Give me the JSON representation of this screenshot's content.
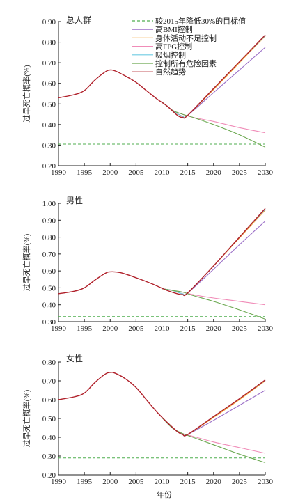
{
  "xlabel": "年份",
  "ylabel": "过早死亡概率(%)",
  "legend": [
    {
      "label": "较2015年降低30%的目标值",
      "color": "#4fae4f",
      "dashed": true
    },
    {
      "label": "高BMI控制",
      "color": "#9b6fc7",
      "dashed": false
    },
    {
      "label": "身体活动不足控制",
      "color": "#f2a33a",
      "dashed": false
    },
    {
      "label": "高FPG控制",
      "color": "#f08cb8",
      "dashed": false
    },
    {
      "label": "吸烟控制",
      "color": "#6fcbe3",
      "dashed": false
    },
    {
      "label": "控制所有危险因素",
      "color": "#6aa84f",
      "dashed": false
    },
    {
      "label": "自然趋势",
      "color": "#b0202a",
      "dashed": false
    }
  ],
  "chart_data": [
    {
      "type": "line",
      "title": "总人群",
      "xlim": [
        1990,
        2030
      ],
      "ylim": [
        0.2,
        0.9
      ],
      "xticks": [
        "1990",
        "1995",
        "2000",
        "2005",
        "2010",
        "2015",
        "2020",
        "2025",
        "2030"
      ],
      "yticks": [
        "0.20",
        "0.30",
        "0.40",
        "0.50",
        "0.60",
        "0.70",
        "0.80",
        "0.90"
      ],
      "target": 0.305,
      "series": [
        {
          "name": "自然趋势",
          "x": [
            1990,
            1993,
            1995,
            1997,
            1999,
            2000,
            2001,
            2003,
            2005,
            2007,
            2009,
            2011,
            2013,
            2014,
            2015,
            2020,
            2025,
            2030
          ],
          "y": [
            0.53,
            0.545,
            0.565,
            0.615,
            0.655,
            0.665,
            0.66,
            0.635,
            0.605,
            0.565,
            0.525,
            0.49,
            0.445,
            0.435,
            0.445,
            0.575,
            0.705,
            0.835
          ]
        },
        {
          "name": "高BMI控制",
          "x": [
            2010,
            2012,
            2014,
            2015,
            2020,
            2025,
            2030
          ],
          "y": [
            0.51,
            0.47,
            0.44,
            0.445,
            0.555,
            0.665,
            0.775
          ]
        },
        {
          "name": "身体活动不足控制",
          "x": [
            2010,
            2012,
            2014,
            2015,
            2020,
            2025,
            2030
          ],
          "y": [
            0.51,
            0.47,
            0.44,
            0.445,
            0.57,
            0.7,
            0.83
          ]
        },
        {
          "name": "高FPG控制",
          "x": [
            2010,
            2012,
            2014,
            2016,
            2020,
            2025,
            2030
          ],
          "y": [
            0.51,
            0.47,
            0.45,
            0.435,
            0.415,
            0.385,
            0.36
          ]
        },
        {
          "name": "吸烟控制",
          "x": [
            2010,
            2012,
            2014,
            2015,
            2020,
            2025,
            2030
          ],
          "y": [
            0.51,
            0.47,
            0.44,
            0.445,
            0.575,
            0.705,
            0.832
          ]
        },
        {
          "name": "控制所有危险因素",
          "x": [
            2010,
            2012,
            2014,
            2016,
            2020,
            2025,
            2030
          ],
          "y": [
            0.51,
            0.47,
            0.45,
            0.435,
            0.4,
            0.35,
            0.29
          ]
        }
      ]
    },
    {
      "type": "line",
      "title": "男性",
      "xlim": [
        1990,
        2030
      ],
      "ylim": [
        0.3,
        1.0
      ],
      "xticks": [
        "1990",
        "1995",
        "2000",
        "2005",
        "2010",
        "2015",
        "2020",
        "2025",
        "2030"
      ],
      "yticks": [
        "0.30",
        "0.40",
        "0.50",
        "0.60",
        "0.70",
        "0.80",
        "0.90",
        "1.00"
      ],
      "target": 0.33,
      "series": [
        {
          "name": "自然趋势",
          "x": [
            1990,
            1993,
            1995,
            1997,
            1999,
            2000,
            2002,
            2005,
            2008,
            2011,
            2013,
            2014,
            2015,
            2020,
            2025,
            2030
          ],
          "y": [
            0.465,
            0.48,
            0.5,
            0.545,
            0.585,
            0.595,
            0.59,
            0.56,
            0.525,
            0.485,
            0.465,
            0.46,
            0.47,
            0.63,
            0.8,
            0.97
          ]
        },
        {
          "name": "高BMI控制",
          "x": [
            2010,
            2012,
            2014,
            2015,
            2020,
            2025,
            2030
          ],
          "y": [
            0.495,
            0.485,
            0.465,
            0.47,
            0.61,
            0.755,
            0.895
          ]
        },
        {
          "name": "身体活动不足控制",
          "x": [
            2010,
            2012,
            2014,
            2015,
            2020,
            2025,
            2030
          ],
          "y": [
            0.495,
            0.485,
            0.465,
            0.47,
            0.63,
            0.795,
            0.96
          ]
        },
        {
          "name": "高FPG控制",
          "x": [
            2010,
            2012,
            2014,
            2016,
            2020,
            2025,
            2030
          ],
          "y": [
            0.495,
            0.485,
            0.475,
            0.46,
            0.44,
            0.42,
            0.4
          ]
        },
        {
          "name": "吸烟控制",
          "x": [
            2010,
            2012,
            2014,
            2015,
            2020,
            2025,
            2030
          ],
          "y": [
            0.495,
            0.485,
            0.465,
            0.47,
            0.63,
            0.8,
            0.965
          ]
        },
        {
          "name": "控制所有危险因素",
          "x": [
            2010,
            2012,
            2014,
            2016,
            2020,
            2025,
            2030
          ],
          "y": [
            0.495,
            0.485,
            0.475,
            0.455,
            0.42,
            0.37,
            0.315
          ]
        }
      ]
    },
    {
      "type": "line",
      "title": "女性",
      "xlim": [
        1990,
        2030
      ],
      "ylim": [
        0.2,
        0.8
      ],
      "xticks": [
        "1990",
        "1995",
        "2000",
        "2005",
        "2010",
        "2015",
        "2020",
        "2025",
        "2030"
      ],
      "yticks": [
        "0.20",
        "0.30",
        "0.40",
        "0.50",
        "0.60",
        "0.70",
        "0.80"
      ],
      "target": 0.29,
      "series": [
        {
          "name": "自然趋势",
          "x": [
            1990,
            1993,
            1995,
            1997,
            1999,
            2000,
            2001,
            2003,
            2005,
            2007,
            2009,
            2011,
            2013,
            2014,
            2015,
            2020,
            2025,
            2030
          ],
          "y": [
            0.6,
            0.615,
            0.635,
            0.69,
            0.735,
            0.745,
            0.74,
            0.71,
            0.665,
            0.6,
            0.535,
            0.48,
            0.43,
            0.415,
            0.415,
            0.51,
            0.605,
            0.705
          ]
        },
        {
          "name": "高BMI控制",
          "x": [
            2010,
            2012,
            2014,
            2015,
            2020,
            2025,
            2030
          ],
          "y": [
            0.505,
            0.45,
            0.415,
            0.415,
            0.49,
            0.57,
            0.65
          ]
        },
        {
          "name": "身体活动不足控制",
          "x": [
            2010,
            2012,
            2014,
            2015,
            2020,
            2025,
            2030
          ],
          "y": [
            0.505,
            0.45,
            0.415,
            0.415,
            0.505,
            0.6,
            0.7
          ]
        },
        {
          "name": "高FPG控制",
          "x": [
            2010,
            2012,
            2014,
            2016,
            2020,
            2025,
            2030
          ],
          "y": [
            0.505,
            0.45,
            0.42,
            0.405,
            0.375,
            0.345,
            0.315
          ]
        },
        {
          "name": "吸烟控制",
          "x": [
            2010,
            2012,
            2014,
            2015,
            2020,
            2025,
            2030
          ],
          "y": [
            0.505,
            0.45,
            0.415,
            0.415,
            0.51,
            0.605,
            0.703
          ]
        },
        {
          "name": "控制所有危险因素",
          "x": [
            2010,
            2012,
            2014,
            2016,
            2020,
            2025,
            2030
          ],
          "y": [
            0.505,
            0.45,
            0.42,
            0.4,
            0.36,
            0.31,
            0.265
          ]
        }
      ]
    }
  ]
}
